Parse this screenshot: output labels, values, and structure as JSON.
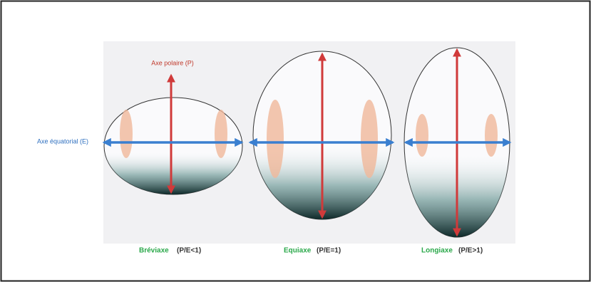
{
  "axes": {
    "polar": "Axe polaire (P)",
    "equatorial": "Axe équatorial (E)"
  },
  "shapes": [
    {
      "name": "Bréviaxe",
      "ratio": "(P/E<1)"
    },
    {
      "name": "Equiaxe",
      "ratio": "(P/E=1)"
    },
    {
      "name": "Longiaxe",
      "ratio": "(P/E>1)"
    }
  ]
}
